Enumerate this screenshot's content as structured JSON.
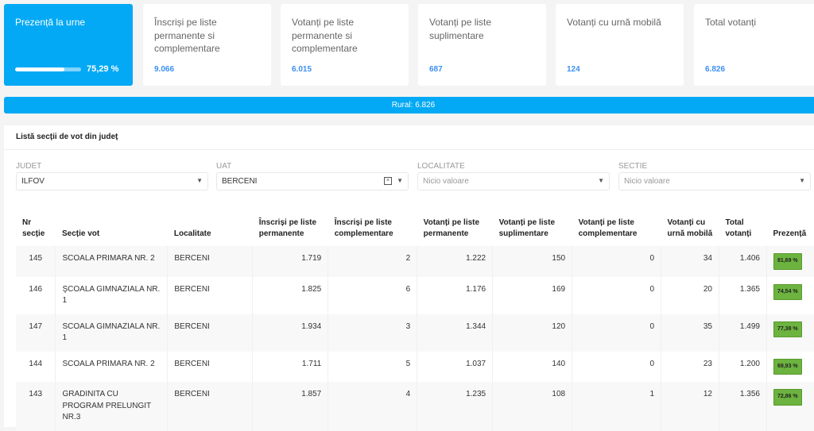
{
  "cards": {
    "turnout": {
      "label": "Prezență la urne",
      "value": "75,29 %",
      "progress_percent": 75.29
    },
    "items": [
      {
        "label": "Înscriși pe liste permanente si complementare",
        "value": "9.066"
      },
      {
        "label": "Votanți pe liste permanente si complementare",
        "value": "6.015"
      },
      {
        "label": "Votanți pe liste suplimentare",
        "value": "687"
      },
      {
        "label": "Votanți cu urnă mobilă",
        "value": "124"
      },
      {
        "label": "Total votanți",
        "value": "6.826"
      }
    ]
  },
  "rural_bar": "Rural: 6.826",
  "panel": {
    "title": "Listă secții de vot din județ"
  },
  "filters": [
    {
      "label": "JUDET",
      "value": "ILFOV",
      "placeholder": ""
    },
    {
      "label": "UAT",
      "value": "BERCENI",
      "placeholder": ""
    },
    {
      "label": "LOCALITATE",
      "value": "",
      "placeholder": "Nicio valoare"
    },
    {
      "label": "SECTIE",
      "value": "",
      "placeholder": "Nicio valoare"
    }
  ],
  "table": {
    "headers": [
      "Nr secție",
      "Secție vot",
      "Localitate",
      "Înscriși pe liste permanente",
      "Înscriși pe liste complementare",
      "Votanți pe liste permanente",
      "Votanți pe liste suplimentare",
      "Votanți pe liste complementare",
      "Votanți cu urnă mobilă",
      "Total votanți",
      "Prezență"
    ],
    "rows": [
      [
        "145",
        "SCOALA PRIMARA NR. 2",
        "BERCENI",
        "1.719",
        "2",
        "1.222",
        "150",
        "0",
        "34",
        "1.406",
        "81,69 %"
      ],
      [
        "146",
        "ŞCOALA GIMNAZIALA NR. 1",
        "BERCENI",
        "1.825",
        "6",
        "1.176",
        "169",
        "0",
        "20",
        "1.365",
        "74,54 %"
      ],
      [
        "147",
        "SCOALA GIMNAZIALA NR. 1",
        "BERCENI",
        "1.934",
        "3",
        "1.344",
        "120",
        "0",
        "35",
        "1.499",
        "77,38 %"
      ],
      [
        "144",
        "SCOALA PRIMARA NR. 2",
        "BERCENI",
        "1.711",
        "5",
        "1.037",
        "140",
        "0",
        "23",
        "1.200",
        "69,93 %"
      ],
      [
        "143",
        "GRADINITA CU PROGRAM PRELUNGIT NR.3",
        "BERCENI",
        "1.857",
        "4",
        "1.235",
        "108",
        "1",
        "12",
        "1.356",
        "72,86 %"
      ]
    ]
  },
  "colors": {
    "accent": "#03a9f4",
    "value_blue": "#3d8ff0",
    "badge_green": "#6cb33f"
  }
}
